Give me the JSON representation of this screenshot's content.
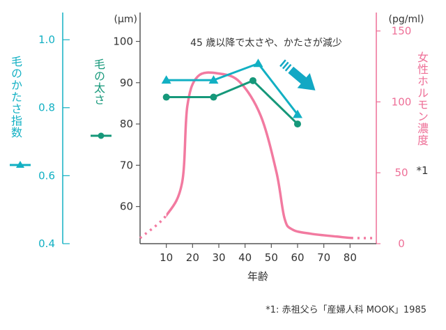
{
  "chart_data": {
    "type": "line",
    "title": "",
    "annotation": "45 歳以降で太さや、かたさが減少",
    "xlabel": "年齢",
    "x_ticks": [
      10,
      20,
      30,
      40,
      50,
      60,
      70,
      80
    ],
    "xlim": [
      0,
      90
    ],
    "axes": {
      "stiffness_index": {
        "label": "毛のかたさ指数",
        "ylim": [
          0.4,
          1.08
        ],
        "ticks": [
          "0.4",
          "0.6",
          "0.8",
          "1.0"
        ],
        "color": "#12b0c3"
      },
      "thickness": {
        "label": "毛の太さ",
        "unit": "(μm)",
        "ylim": [
          51,
          107
        ],
        "ticks": [
          "60",
          "70",
          "80",
          "90",
          "100"
        ],
        "color": "#16987a"
      },
      "hormone": {
        "label": "女性ホルモン濃度",
        "unit": "(pg/ml)",
        "footnote_mark": "*1",
        "ylim": [
          0,
          163
        ],
        "ticks": [
          "0",
          "50",
          "100",
          "150"
        ],
        "color": "#ee6f97"
      }
    },
    "series": [
      {
        "name": "毛のかたさ指数",
        "axis": "stiffness_index",
        "marker": "triangle",
        "color": "#12b0c3",
        "x": [
          10,
          28,
          45,
          60
        ],
        "y": [
          0.881,
          0.881,
          0.93,
          0.78
        ]
      },
      {
        "name": "毛の太さ",
        "axis": "thickness",
        "marker": "circle",
        "color": "#16987a",
        "x": [
          10,
          28,
          43,
          60
        ],
        "y": [
          86.5,
          86.5,
          90.5,
          80
        ]
      },
      {
        "name": "女性ホルモン濃度",
        "axis": "hormone",
        "style": "curve",
        "color": "#f27aa0",
        "x": [
          0,
          10,
          16,
          18,
          22,
          30,
          38,
          46,
          52,
          55,
          58,
          65,
          75,
          81,
          90
        ],
        "y": [
          4,
          20,
          43,
          97,
          118,
          120,
          114,
          90,
          50,
          18,
          10,
          7,
          5,
          4,
          4
        ],
        "dotted_start_x": 10,
        "dotted_end_x": 81
      }
    ],
    "source": "*1: 赤祖父ら「産婦人科 MOOK」1985"
  }
}
